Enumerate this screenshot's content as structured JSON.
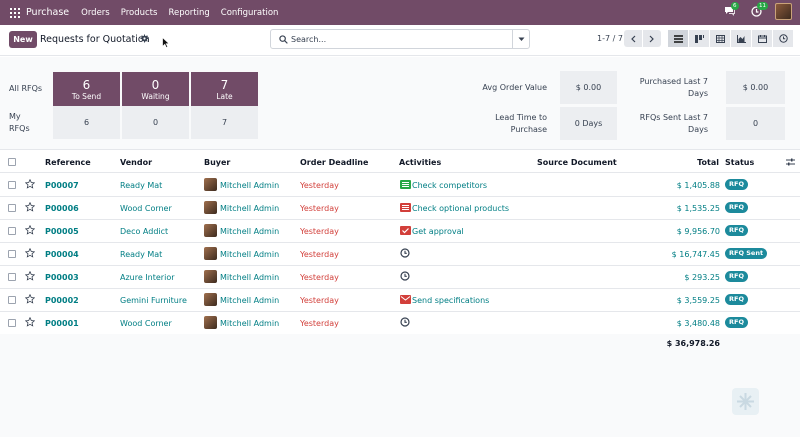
{
  "topnav": {
    "brand": "Purchase",
    "menu": [
      "Orders",
      "Products",
      "Reporting",
      "Configuration"
    ],
    "messages_badge": "6",
    "activities_badge": "11"
  },
  "control_panel": {
    "new_label": "New",
    "title": "Requests for Quotation",
    "search_placeholder": "Search...",
    "pager": "1-7 / 7"
  },
  "dashboard": {
    "all_rfqs": "All RFQs",
    "my_rfqs": "My RFQs",
    "tiles": [
      {
        "value": "6",
        "label": "To Send",
        "mine": "6"
      },
      {
        "value": "0",
        "label": "Waiting",
        "mine": "0"
      },
      {
        "value": "7",
        "label": "Late",
        "mine": "7"
      }
    ],
    "avg_order_value_label": "Avg Order Value",
    "avg_order_value": "$ 0.00",
    "lead_time_label": "Lead Time to Purchase",
    "lead_time": "0  Days",
    "purchased_label": "Purchased Last 7 Days",
    "purchased": "$ 0.00",
    "rfqs_sent_label": "RFQs Sent Last 7 Days",
    "rfqs_sent": "0"
  },
  "table": {
    "headers": {
      "reference": "Reference",
      "vendor": "Vendor",
      "buyer": "Buyer",
      "deadline": "Order Deadline",
      "activities": "Activities",
      "source": "Source Document",
      "total": "Total",
      "status": "Status"
    },
    "rows": [
      {
        "ref": "P00007",
        "vendor": "Ready Mat",
        "buyer": "Mitchell Admin",
        "deadline": "Yesterday",
        "activity": "Check competitors",
        "activity_icon": "list-icon-green",
        "total": "$ 1,405.88",
        "status": "RFQ"
      },
      {
        "ref": "P00006",
        "vendor": "Wood Corner",
        "buyer": "Mitchell Admin",
        "deadline": "Yesterday",
        "activity": "Check optional products",
        "activity_icon": "list-icon-red",
        "total": "$ 1,535.25",
        "status": "RFQ"
      },
      {
        "ref": "P00005",
        "vendor": "Deco Addict",
        "buyer": "Mitchell Admin",
        "deadline": "Yesterday",
        "activity": "Get approval",
        "activity_icon": "check-icon-red",
        "total": "$ 9,956.70",
        "status": "RFQ"
      },
      {
        "ref": "P00004",
        "vendor": "Ready Mat",
        "buyer": "Mitchell Admin",
        "deadline": "Yesterday",
        "activity": "",
        "activity_icon": "clock-icon",
        "total": "$ 16,747.45",
        "status": "RFQ Sent"
      },
      {
        "ref": "P00003",
        "vendor": "Azure Interior",
        "buyer": "Mitchell Admin",
        "deadline": "Yesterday",
        "activity": "",
        "activity_icon": "clock-icon",
        "total": "$ 293.25",
        "status": "RFQ"
      },
      {
        "ref": "P00002",
        "vendor": "Gemini Furniture",
        "buyer": "Mitchell Admin",
        "deadline": "Yesterday",
        "activity": "Send specifications",
        "activity_icon": "envelope-icon-red",
        "total": "$ 3,559.25",
        "status": "RFQ"
      },
      {
        "ref": "P00001",
        "vendor": "Wood Corner",
        "buyer": "Mitchell Admin",
        "deadline": "Yesterday",
        "activity": "",
        "activity_icon": "clock-icon",
        "total": "$ 3,480.48",
        "status": "RFQ"
      }
    ],
    "grand_total": "$ 36,978.26"
  },
  "colors": {
    "brand": "#714B67",
    "link": "#017e84",
    "late": "#d23f3a",
    "status": "#1c8a9c"
  }
}
